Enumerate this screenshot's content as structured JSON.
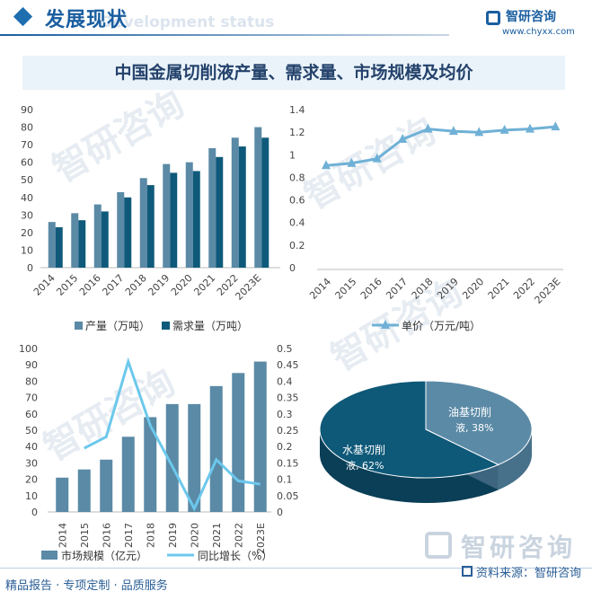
{
  "header": {
    "title": "发展现状",
    "subtitle": "Development status",
    "logo_name": "智研咨询",
    "logo_url": "www.chyxx.com"
  },
  "figure_title": "中国金属切削液产量、需求量、市场规模及均价",
  "footer": {
    "left": "精品报告 · 专项定制 · 品质服务",
    "source_label": "资料来源：智研咨询",
    "watermark": "智研咨询"
  },
  "colors": {
    "light_bar": "#5a8aa6",
    "dark_bar": "#0f5a7a",
    "line_price": "#6fb1d6",
    "line_growth": "#6cc8ec",
    "pie_water": "#0e5878",
    "pie_oil": "#5b8aa6",
    "title_bg": "#eaf3fa"
  },
  "chart_data": [
    {
      "id": "production_demand",
      "type": "bar",
      "categories": [
        "2014",
        "2015",
        "2016",
        "2017",
        "2018",
        "2019",
        "2020",
        "2021",
        "2022",
        "2023E"
      ],
      "series": [
        {
          "name": "产量（万吨）",
          "values": [
            26,
            31,
            36,
            43,
            51,
            59,
            60,
            68,
            74,
            80
          ]
        },
        {
          "name": "需求量（万吨）",
          "values": [
            23,
            27,
            32,
            40,
            47,
            54,
            55,
            63,
            69,
            74
          ]
        }
      ],
      "ylim": [
        0,
        90
      ],
      "yticks": [
        "0",
        "10",
        "20",
        "30",
        "40",
        "50",
        "60",
        "70",
        "80",
        "90"
      ],
      "y2ticks": [
        "0",
        "0.2",
        "0.4",
        "0.6",
        "0.8",
        "1",
        "1.2",
        "1.4"
      ],
      "legend": "bottom"
    },
    {
      "id": "price",
      "type": "line",
      "categories": [
        "2014",
        "2015",
        "2016",
        "2017",
        "2018",
        "2019",
        "2020",
        "2021",
        "2022",
        "2023E"
      ],
      "series": [
        {
          "name": "单价（万元/吨）",
          "values": [
            0.91,
            0.93,
            0.97,
            1.14,
            1.23,
            1.21,
            1.2,
            1.22,
            1.23,
            1.25
          ]
        }
      ],
      "ylim": [
        0,
        1.4
      ],
      "legend": "bottom"
    },
    {
      "id": "market",
      "type": "bar",
      "categories": [
        "2014",
        "2015",
        "2016",
        "2017",
        "2018",
        "2019",
        "2020",
        "2021",
        "2022",
        "2023E"
      ],
      "series": [
        {
          "name": "市场规模（亿元）",
          "values": [
            21,
            26,
            32,
            46,
            58,
            66,
            66,
            77,
            85,
            92
          ]
        },
        {
          "name": "同比增长（%）",
          "values": [
            null,
            0.195,
            0.23,
            0.46,
            0.265,
            0.14,
            0.01,
            0.16,
            0.095,
            0.085
          ]
        }
      ],
      "ylim": [
        0,
        100
      ],
      "yticks": [
        "0",
        "10",
        "20",
        "30",
        "40",
        "50",
        "60",
        "70",
        "80",
        "90",
        "100"
      ],
      "y2ticks": [
        "0",
        "0.05",
        "0.1",
        "0.15",
        "0.2",
        "0.25",
        "0.3",
        "0.35",
        "0.4",
        "0.45",
        "0.5"
      ],
      "legend": "bottom"
    },
    {
      "id": "share",
      "type": "pie",
      "categories": [
        "水基切削液",
        "油基切削液"
      ],
      "values": [
        62,
        38
      ],
      "labels": [
        {
          "name": "水基切削",
          "rest": "液, 62%"
        },
        {
          "name": "油基切削",
          "rest": "液, 38%"
        }
      ]
    }
  ]
}
